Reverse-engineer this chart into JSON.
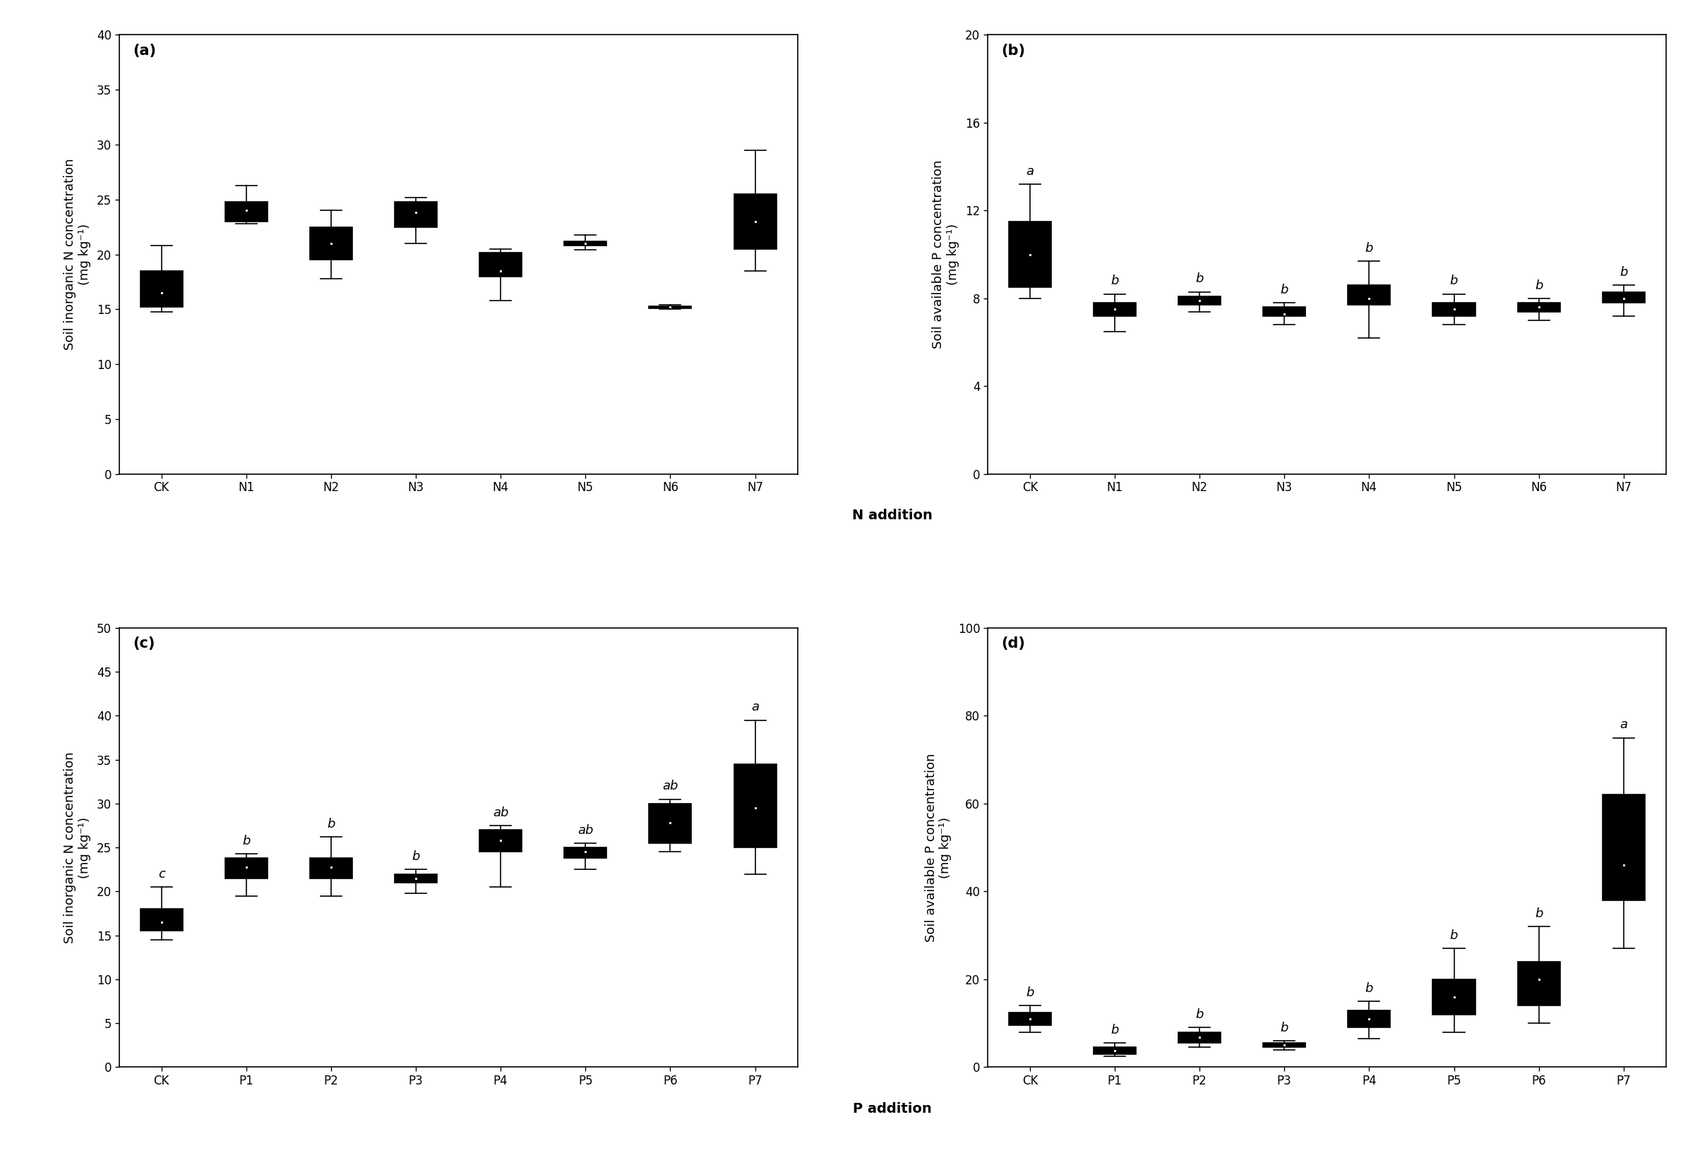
{
  "panels": [
    "a",
    "b",
    "c",
    "d"
  ],
  "panel_a": {
    "categories": [
      "CK",
      "N1",
      "N2",
      "N3",
      "N4",
      "N5",
      "N6",
      "N7"
    ],
    "ylabel": "Soil inorganic N concentration\n(mg kg⁻¹)",
    "ylim": [
      0,
      40
    ],
    "yticks": [
      0,
      5,
      10,
      15,
      20,
      25,
      30,
      35,
      40
    ],
    "xlabel": "N addition",
    "letters": [
      "",
      "",
      "",
      "",
      "",
      "",
      "",
      ""
    ],
    "boxes": [
      {
        "whislo": 14.8,
        "q1": 15.2,
        "med": 16.0,
        "q3": 18.5,
        "whishi": 20.8,
        "mean": 16.5
      },
      {
        "whislo": 22.8,
        "q1": 23.0,
        "med": 23.8,
        "q3": 24.8,
        "whishi": 26.3,
        "mean": 24.0
      },
      {
        "whislo": 17.8,
        "q1": 19.5,
        "med": 21.0,
        "q3": 22.5,
        "whishi": 24.0,
        "mean": 21.0
      },
      {
        "whislo": 21.0,
        "q1": 22.5,
        "med": 23.8,
        "q3": 24.8,
        "whishi": 25.2,
        "mean": 23.8
      },
      {
        "whislo": 15.8,
        "q1": 18.0,
        "med": 18.5,
        "q3": 20.2,
        "whishi": 20.5,
        "mean": 18.5
      },
      {
        "whislo": 20.4,
        "q1": 20.8,
        "med": 21.0,
        "q3": 21.2,
        "whishi": 21.8,
        "mean": 21.0
      },
      {
        "whislo": 15.0,
        "q1": 15.1,
        "med": 15.2,
        "q3": 15.3,
        "whishi": 15.4,
        "mean": 15.2
      },
      {
        "whislo": 18.5,
        "q1": 20.5,
        "med": 21.5,
        "q3": 25.5,
        "whishi": 29.5,
        "mean": 23.0
      }
    ]
  },
  "panel_b": {
    "categories": [
      "CK",
      "N1",
      "N2",
      "N3",
      "N4",
      "N5",
      "N6",
      "N7"
    ],
    "ylabel": "Soil available P concentration\n(mg kg⁻¹)",
    "ylim": [
      0,
      20
    ],
    "yticks": [
      0,
      4,
      8,
      12,
      16,
      20
    ],
    "xlabel": "N addition",
    "letters": [
      "a",
      "b",
      "b",
      "b",
      "b",
      "b",
      "b",
      "b"
    ],
    "boxes": [
      {
        "whislo": 8.0,
        "q1": 8.5,
        "med": 9.0,
        "q3": 11.5,
        "whishi": 13.2,
        "mean": 10.0
      },
      {
        "whislo": 6.5,
        "q1": 7.2,
        "med": 7.5,
        "q3": 7.8,
        "whishi": 8.2,
        "mean": 7.5
      },
      {
        "whislo": 7.4,
        "q1": 7.7,
        "med": 7.9,
        "q3": 8.1,
        "whishi": 8.3,
        "mean": 7.9
      },
      {
        "whislo": 6.8,
        "q1": 7.2,
        "med": 7.4,
        "q3": 7.6,
        "whishi": 7.8,
        "mean": 7.3
      },
      {
        "whislo": 6.2,
        "q1": 7.7,
        "med": 8.0,
        "q3": 8.6,
        "whishi": 9.7,
        "mean": 8.0
      },
      {
        "whislo": 6.8,
        "q1": 7.2,
        "med": 7.5,
        "q3": 7.8,
        "whishi": 8.2,
        "mean": 7.5
      },
      {
        "whislo": 7.0,
        "q1": 7.4,
        "med": 7.6,
        "q3": 7.8,
        "whishi": 8.0,
        "mean": 7.6
      },
      {
        "whislo": 7.2,
        "q1": 7.8,
        "med": 8.0,
        "q3": 8.3,
        "whishi": 8.6,
        "mean": 8.0
      }
    ]
  },
  "panel_c": {
    "categories": [
      "CK",
      "P1",
      "P2",
      "P3",
      "P4",
      "P5",
      "P6",
      "P7"
    ],
    "ylabel": "Soil inorganic N concentration\n(mg kg⁻¹)",
    "ylim": [
      0,
      50
    ],
    "yticks": [
      0,
      5,
      10,
      15,
      20,
      25,
      30,
      35,
      40,
      45,
      50
    ],
    "xlabel": "P addition",
    "letters": [
      "c",
      "b",
      "b",
      "b",
      "ab",
      "ab",
      "ab",
      "a"
    ],
    "boxes": [
      {
        "whislo": 14.5,
        "q1": 15.5,
        "med": 16.0,
        "q3": 18.0,
        "whishi": 20.5,
        "mean": 16.5
      },
      {
        "whislo": 19.5,
        "q1": 21.5,
        "med": 22.8,
        "q3": 23.8,
        "whishi": 24.3,
        "mean": 22.8
      },
      {
        "whislo": 19.5,
        "q1": 21.5,
        "med": 22.5,
        "q3": 23.8,
        "whishi": 26.2,
        "mean": 22.8
      },
      {
        "whislo": 19.8,
        "q1": 21.0,
        "med": 21.5,
        "q3": 22.0,
        "whishi": 22.5,
        "mean": 21.5
      },
      {
        "whislo": 20.5,
        "q1": 24.5,
        "med": 26.0,
        "q3": 27.0,
        "whishi": 27.5,
        "mean": 25.8
      },
      {
        "whislo": 22.5,
        "q1": 23.8,
        "med": 24.5,
        "q3": 25.0,
        "whishi": 25.5,
        "mean": 24.5
      },
      {
        "whislo": 24.5,
        "q1": 25.5,
        "med": 27.5,
        "q3": 30.0,
        "whishi": 30.5,
        "mean": 27.8
      },
      {
        "whislo": 22.0,
        "q1": 25.0,
        "med": 29.0,
        "q3": 34.5,
        "whishi": 39.5,
        "mean": 29.5
      }
    ]
  },
  "panel_d": {
    "categories": [
      "CK",
      "P1",
      "P2",
      "P3",
      "P4",
      "P5",
      "P6",
      "P7"
    ],
    "ylabel": "Soil available P concentration\n(mg kg⁻¹)",
    "ylim": [
      0,
      100
    ],
    "yticks": [
      0,
      20,
      40,
      60,
      80,
      100
    ],
    "xlabel": "P addition",
    "letters": [
      "b",
      "b",
      "b",
      "b",
      "b",
      "b",
      "b",
      "a"
    ],
    "boxes": [
      {
        "whislo": 8.0,
        "q1": 9.5,
        "med": 11.0,
        "q3": 12.5,
        "whishi": 14.0,
        "mean": 11.0
      },
      {
        "whislo": 2.5,
        "q1": 3.0,
        "med": 3.5,
        "q3": 4.5,
        "whishi": 5.5,
        "mean": 3.8
      },
      {
        "whislo": 4.5,
        "q1": 5.5,
        "med": 6.5,
        "q3": 8.0,
        "whishi": 9.0,
        "mean": 6.8
      },
      {
        "whislo": 4.0,
        "q1": 4.5,
        "med": 5.0,
        "q3": 5.5,
        "whishi": 6.0,
        "mean": 5.0
      },
      {
        "whislo": 6.5,
        "q1": 9.0,
        "med": 11.0,
        "q3": 13.0,
        "whishi": 15.0,
        "mean": 11.0
      },
      {
        "whislo": 8.0,
        "q1": 12.0,
        "med": 15.0,
        "q3": 20.0,
        "whishi": 27.0,
        "mean": 16.0
      },
      {
        "whislo": 10.0,
        "q1": 14.0,
        "med": 18.0,
        "q3": 24.0,
        "whishi": 32.0,
        "mean": 20.0
      },
      {
        "whislo": 27.0,
        "q1": 38.0,
        "med": 42.0,
        "q3": 62.0,
        "whishi": 75.0,
        "mean": 46.0
      }
    ]
  },
  "box_color": "#c8c8c8",
  "median_color": "#000000",
  "whisker_color": "#000000",
  "mean_marker": "s",
  "mean_marker_size": 3,
  "mean_marker_color": "white",
  "mean_marker_edgecolor": "#000000",
  "letter_fontsize": 13,
  "label_fontsize": 13,
  "tick_fontsize": 12,
  "panel_label_fontsize": 15,
  "background_color": "#ffffff"
}
